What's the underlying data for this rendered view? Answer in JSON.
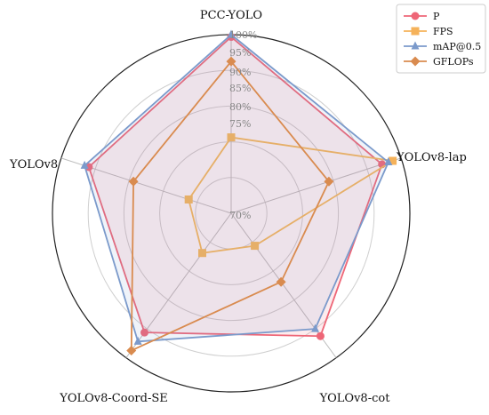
{
  "chart_data": {
    "type": "radar",
    "categories": [
      "PCC-YOLO",
      "YOLOv8-lap",
      "YOLOv8-cot",
      "YOLOv8-Coord-SE",
      "YOLOv8"
    ],
    "radial_ticks": [
      "70%",
      "75%",
      "80%",
      "85%",
      "90%",
      "95%",
      "100%"
    ],
    "rlim": [
      60,
      100
    ],
    "grid": true,
    "legend_position": "top-right",
    "series": [
      {
        "name": "P",
        "color": "#ee6677",
        "marker": "circle",
        "fill": true,
        "values": [
          99.5,
          95.5,
          94.0,
          93.0,
          93.5
        ]
      },
      {
        "name": "FPS",
        "color": "#f5b25a",
        "marker": "square",
        "fill": false,
        "values": [
          77,
          98,
          69,
          71,
          70
        ]
      },
      {
        "name": "mAP@0.5",
        "color": "#7b9acb",
        "marker": "triangle",
        "fill": true,
        "values": [
          100.0,
          97.0,
          92.0,
          95.5,
          94.5
        ]
      },
      {
        "name": "GFLOPs",
        "color": "#d98b4f",
        "marker": "diamond",
        "fill": false,
        "values": [
          94,
          83,
          79,
          98,
          83
        ]
      }
    ]
  }
}
